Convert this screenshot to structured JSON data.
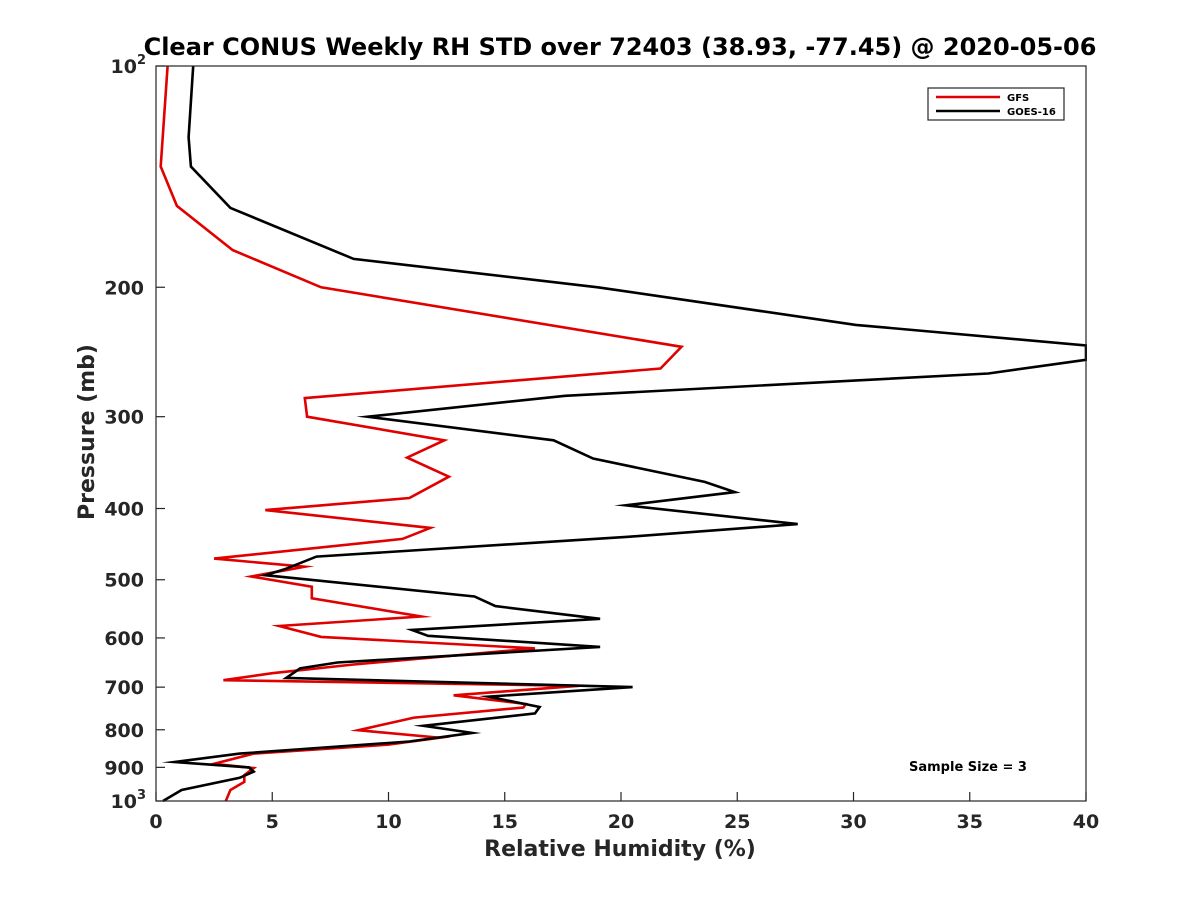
{
  "chart_data": {
    "type": "line",
    "title": "Clear CONUS Weekly RH STD over 72403 (38.93, -77.45) @ 2020-05-06",
    "xlabel": "Relative Humidity (%)",
    "ylabel": "Pressure (mb)",
    "xlim": [
      0,
      40
    ],
    "ylim": [
      100,
      1000
    ],
    "yscale": "log",
    "y_reversed": true,
    "x_ticks": [
      {
        "value": 0,
        "label": "0"
      },
      {
        "value": 5,
        "label": "5"
      },
      {
        "value": 10,
        "label": "10"
      },
      {
        "value": 15,
        "label": "15"
      },
      {
        "value": 20,
        "label": "20"
      },
      {
        "value": 25,
        "label": "25"
      },
      {
        "value": 30,
        "label": "30"
      },
      {
        "value": 35,
        "label": "35"
      },
      {
        "value": 40,
        "label": "40"
      }
    ],
    "y_ticks": [
      {
        "value": 100,
        "base": "10",
        "exp": "2"
      },
      {
        "value": 200,
        "label": "200"
      },
      {
        "value": 300,
        "label": "300"
      },
      {
        "value": 400,
        "label": "400"
      },
      {
        "value": 500,
        "label": "500"
      },
      {
        "value": 600,
        "label": "600"
      },
      {
        "value": 700,
        "label": "700"
      },
      {
        "value": 800,
        "label": "800"
      },
      {
        "value": 900,
        "label": "900"
      },
      {
        "value": 1000,
        "base": "10",
        "exp": "3"
      }
    ],
    "grid": false,
    "legend_position": "top-right",
    "annotation": "Sample Size = 3",
    "series": [
      {
        "name": "GFS",
        "color": "#e00000",
        "points": [
          [
            0.5,
            100
          ],
          [
            0.2,
            137
          ],
          [
            0.9,
            155
          ],
          [
            3.3,
            178
          ],
          [
            7.1,
            200
          ],
          [
            22.6,
            241
          ],
          [
            21.7,
            258
          ],
          [
            6.4,
            283
          ],
          [
            6.5,
            300
          ],
          [
            12.4,
            323
          ],
          [
            10.8,
            341
          ],
          [
            12.6,
            362
          ],
          [
            10.9,
            387
          ],
          [
            4.7,
            402
          ],
          [
            11.8,
            425
          ],
          [
            10.6,
            440
          ],
          [
            2.5,
            468
          ],
          [
            6.4,
            480
          ],
          [
            4.1,
            495
          ],
          [
            6.7,
            511
          ],
          [
            6.7,
            530
          ],
          [
            11.4,
            561
          ],
          [
            5.3,
            578
          ],
          [
            7.1,
            598
          ],
          [
            16.3,
            620
          ],
          [
            8.5,
            652
          ],
          [
            5.0,
            670
          ],
          [
            2.9,
            685
          ],
          [
            18.2,
            697
          ],
          [
            12.8,
            718
          ],
          [
            15.9,
            738
          ],
          [
            15.8,
            746
          ],
          [
            11.1,
            770
          ],
          [
            8.7,
            801
          ],
          [
            12.2,
            820
          ],
          [
            10.0,
            838
          ],
          [
            4.2,
            862
          ],
          [
            2.5,
            890
          ],
          [
            4.2,
            902
          ],
          [
            3.8,
            922
          ],
          [
            3.8,
            942
          ],
          [
            3.2,
            966
          ],
          [
            3.0,
            1000
          ]
        ]
      },
      {
        "name": "GOES-16",
        "color": "#000000",
        "points": [
          [
            1.6,
            100
          ],
          [
            1.4,
            125
          ],
          [
            1.5,
            137
          ],
          [
            3.2,
            156
          ],
          [
            8.5,
            183
          ],
          [
            19.0,
            200
          ],
          [
            30.1,
            225
          ],
          [
            40.0,
            240
          ],
          [
            40.0,
            251
          ],
          [
            35.8,
            262
          ],
          [
            17.6,
            281
          ],
          [
            9.1,
            300
          ],
          [
            17.1,
            323
          ],
          [
            18.8,
            342
          ],
          [
            23.6,
            368
          ],
          [
            24.9,
            380
          ],
          [
            20.2,
            396
          ],
          [
            27.6,
            420
          ],
          [
            20.3,
            437
          ],
          [
            6.9,
            465
          ],
          [
            5.6,
            483
          ],
          [
            4.7,
            493
          ],
          [
            13.7,
            527
          ],
          [
            14.6,
            543
          ],
          [
            19.1,
            565
          ],
          [
            11.0,
            585
          ],
          [
            11.7,
            596
          ],
          [
            19.1,
            617
          ],
          [
            7.8,
            648
          ],
          [
            6.2,
            660
          ],
          [
            5.6,
            680
          ],
          [
            20.5,
            700
          ],
          [
            14.3,
            721
          ],
          [
            16.5,
            745
          ],
          [
            16.3,
            760
          ],
          [
            11.5,
            790
          ],
          [
            13.6,
            808
          ],
          [
            10.9,
            830
          ],
          [
            3.6,
            862
          ],
          [
            0.8,
            885
          ],
          [
            4.0,
            900
          ],
          [
            4.2,
            912
          ],
          [
            3.6,
            930
          ],
          [
            1.1,
            966
          ],
          [
            0.3,
            1000
          ]
        ]
      }
    ]
  }
}
